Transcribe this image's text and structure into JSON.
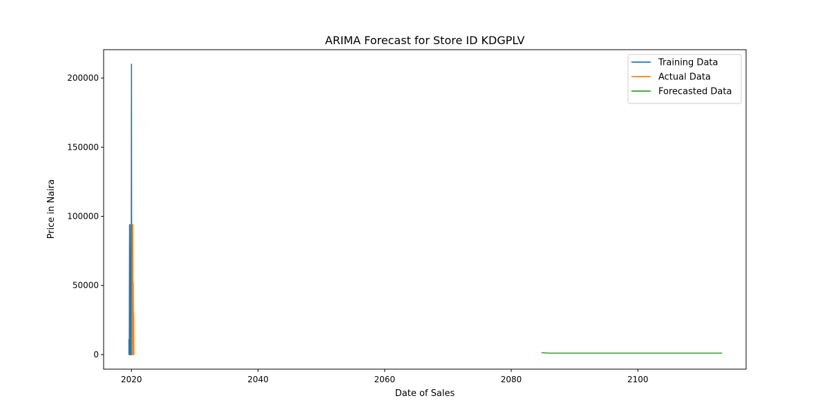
{
  "chart_data": {
    "type": "line",
    "title": "ARIMA Forecast for Store ID KDGPLV",
    "xlabel": "Date of Sales",
    "ylabel": "Price in Naira",
    "xlim": [
      2015.6,
      2117.1
    ],
    "ylim": [
      -10500,
      220500
    ],
    "xticks": [
      2020,
      2040,
      2060,
      2080,
      2100
    ],
    "yticks": [
      0,
      50000,
      100000,
      150000,
      200000
    ],
    "grid": false,
    "legend_position": "top-right",
    "series": [
      {
        "name": "Training Data",
        "color": "#1f77b4",
        "points": [
          [
            2019.6,
            0
          ],
          [
            2019.6,
            11000
          ],
          [
            2019.65,
            0
          ],
          [
            2019.7,
            94000
          ],
          [
            2019.75,
            0
          ],
          [
            2019.8,
            60000
          ],
          [
            2019.85,
            0
          ],
          [
            2019.9,
            94000
          ],
          [
            2019.95,
            0
          ],
          [
            2020.0,
            210000
          ],
          [
            2020.03,
            0
          ],
          [
            2020.06,
            36000
          ],
          [
            2020.08,
            0
          ]
        ]
      },
      {
        "name": "Actual Data",
        "color": "#ff7f0e",
        "points": [
          [
            2020.1,
            0
          ],
          [
            2020.12,
            94000
          ],
          [
            2020.16,
            0
          ],
          [
            2020.2,
            94000
          ],
          [
            2020.24,
            0
          ],
          [
            2020.28,
            52000
          ],
          [
            2020.32,
            0
          ],
          [
            2020.35,
            30000
          ],
          [
            2020.38,
            0
          ]
        ]
      },
      {
        "name": "Forecasted Data",
        "color": "#2ca02c",
        "points": [
          [
            2084.8,
            1400
          ],
          [
            2086,
            1100
          ],
          [
            2090,
            1100
          ],
          [
            2095,
            1100
          ],
          [
            2100,
            1100
          ],
          [
            2105,
            1100
          ],
          [
            2110,
            1100
          ],
          [
            2113.3,
            1100
          ]
        ]
      }
    ]
  }
}
